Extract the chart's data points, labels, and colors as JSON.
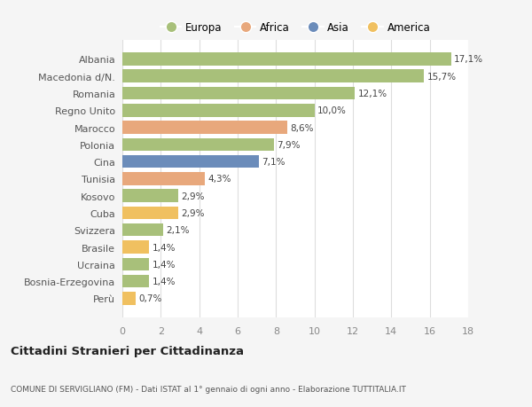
{
  "countries": [
    "Albania",
    "Macedonia d/N.",
    "Romania",
    "Regno Unito",
    "Marocco",
    "Polonia",
    "Cina",
    "Tunisia",
    "Kosovo",
    "Cuba",
    "Svizzera",
    "Brasile",
    "Ucraina",
    "Bosnia-Erzegovina",
    "Perù"
  ],
  "values": [
    17.1,
    15.7,
    12.1,
    10.0,
    8.6,
    7.9,
    7.1,
    4.3,
    2.9,
    2.9,
    2.1,
    1.4,
    1.4,
    1.4,
    0.7
  ],
  "labels": [
    "17,1%",
    "15,7%",
    "12,1%",
    "10,0%",
    "8,6%",
    "7,9%",
    "7,1%",
    "4,3%",
    "2,9%",
    "2,9%",
    "2,1%",
    "1,4%",
    "1,4%",
    "1,4%",
    "0,7%"
  ],
  "colors": [
    "#a8c07a",
    "#a8c07a",
    "#a8c07a",
    "#a8c07a",
    "#e8a87c",
    "#a8c07a",
    "#6b8cba",
    "#e8a87c",
    "#a8c07a",
    "#f0c060",
    "#a8c07a",
    "#f0c060",
    "#a8c07a",
    "#a8c07a",
    "#f0c060"
  ],
  "legend_labels": [
    "Europa",
    "Africa",
    "Asia",
    "America"
  ],
  "legend_colors": [
    "#a8c07a",
    "#e8a87c",
    "#6b8cba",
    "#f0c060"
  ],
  "title": "Cittadini Stranieri per Cittadinanza",
  "subtitle": "COMUNE DI SERVIGLIANO (FM) - Dati ISTAT al 1° gennaio di ogni anno - Elaborazione TUTTITALIA.IT",
  "xlim": [
    0,
    18
  ],
  "xticks": [
    0,
    2,
    4,
    6,
    8,
    10,
    12,
    14,
    16,
    18
  ],
  "background_color": "#f5f5f5",
  "plot_background": "#ffffff",
  "grid_color": "#dddddd"
}
